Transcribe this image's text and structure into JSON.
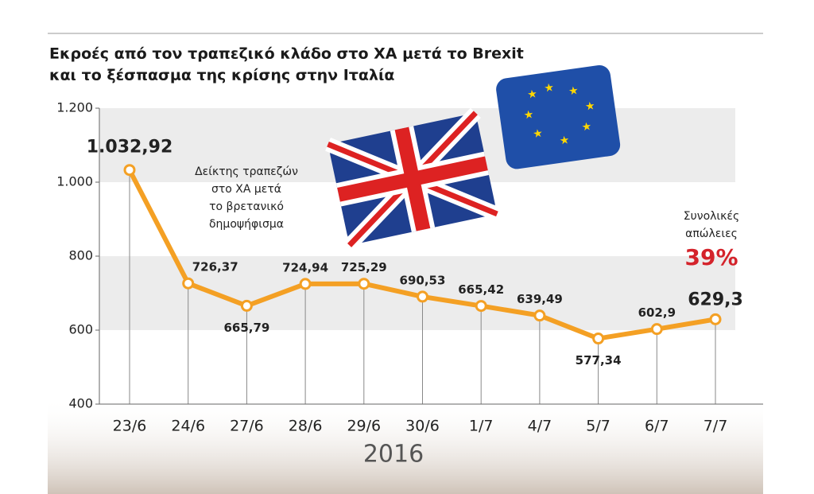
{
  "chart_data": {
    "type": "line",
    "title": [
      "Εκροές από τον τραπεζικό κλάδο στο ΧΑ μετά το Brexit",
      "και το ξέσπασμα της κρίσης στην Ιταλία"
    ],
    "xlabel": "2016",
    "categories": [
      "23/6",
      "24/6",
      "27/6",
      "28/6",
      "29/6",
      "30/6",
      "1/7",
      "4/7",
      "5/7",
      "6/7",
      "7/7"
    ],
    "series": [
      {
        "name": "Δείκτης τραπεζών",
        "color": "#f4a024",
        "values": [
          1032.92,
          726.37,
          665.79,
          724.94,
          725.29,
          690.53,
          665.42,
          639.49,
          577.34,
          602.9,
          629.3
        ],
        "value_labels": [
          "1.032,92",
          "726,37",
          "665,79",
          "724,94",
          "725,29",
          "690,53",
          "665,42",
          "639,49",
          "577,34",
          "602,9",
          "629,3"
        ]
      }
    ],
    "ylim": [
      400,
      1200
    ],
    "yticks": [
      400,
      600,
      800,
      {
        "value": 1000,
        "label": "1.000"
      },
      {
        "value": 1200,
        "label": "1.200"
      }
    ],
    "annotations": [
      {
        "text": [
          "Δείκτης τραπεζών",
          "στο ΧΑ μετά",
          "το βρετανικό",
          "δημοψήφισμα"
        ]
      },
      {
        "text": [
          "Συνολικές",
          "απώλειες"
        ],
        "highlight": "39%"
      }
    ]
  }
}
